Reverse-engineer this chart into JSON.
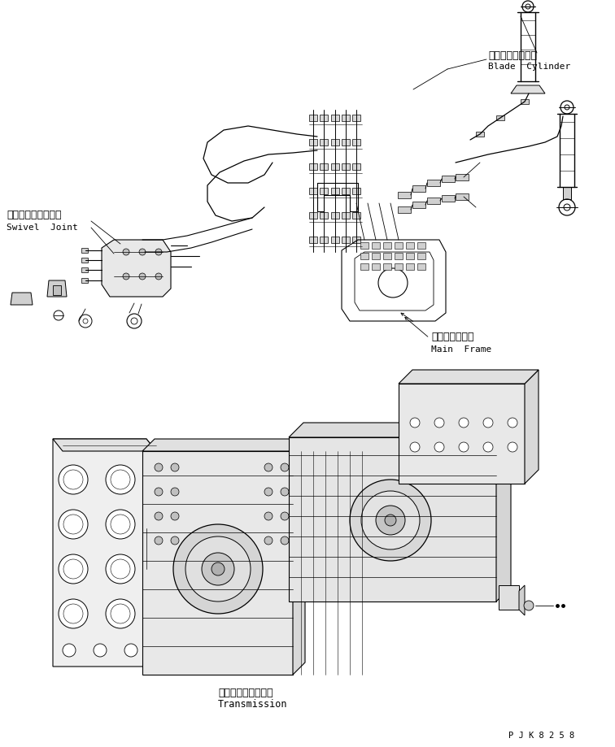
{
  "bg_color": "#ffffff",
  "line_color": "#000000",
  "lw_main": 0.8,
  "lw_thin": 0.5,
  "labels": {
    "blade_cylinder_jp": "ブレードシリンダ",
    "blade_cylinder_en": "Blade  Cylinder",
    "swivel_joint_jp": "スイベルジョイント",
    "swivel_joint_en": "Swivel  Joint",
    "main_frame_jp": "メインフレーム",
    "main_frame_en": "Main  Frame",
    "transmission_jp": "トランスミッション",
    "transmission_en": "Transmission",
    "part_number": "P J K 8 2 5 8"
  },
  "font_mono": "monospace",
  "font_sans": "DejaVu Sans"
}
